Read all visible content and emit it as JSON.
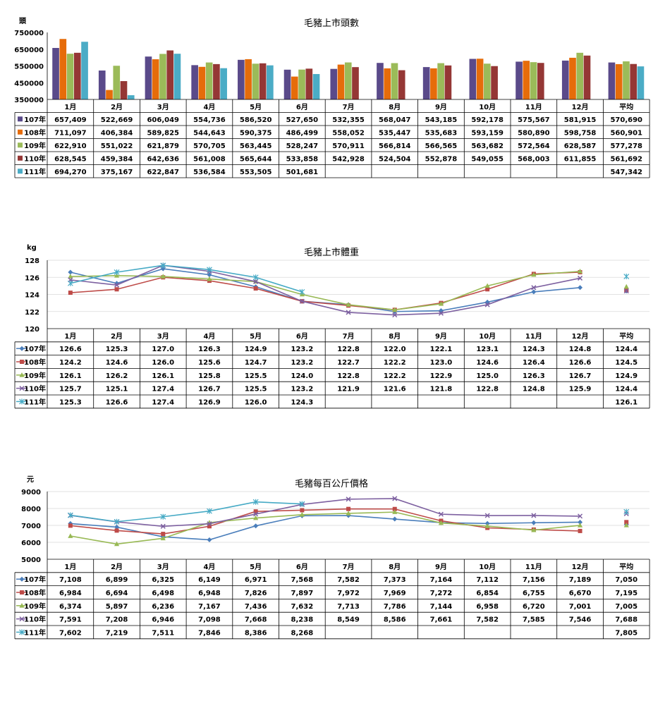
{
  "colors": {
    "107": "#5a4a8a",
    "108": "#e66c0a",
    "109": "#9bbb59",
    "110": "#953735",
    "111": "#4bacc6",
    "line107": "#4a7ebb",
    "line108": "#be4b48",
    "line109": "#98b954",
    "line110": "#7d60a0",
    "line111": "#46aac5"
  },
  "chart_data": [
    {
      "type": "bar",
      "title": "毛豬上市頭數",
      "ylabel": "頭",
      "ylim": [
        350000,
        750000
      ],
      "yticks": [
        "750000",
        "650000",
        "550000",
        "450000",
        "350000"
      ],
      "categories": [
        "1月",
        "2月",
        "3月",
        "4月",
        "5月",
        "6月",
        "7月",
        "8月",
        "9月",
        "10月",
        "11月",
        "12月",
        "平均"
      ],
      "series": [
        {
          "name": "107年",
          "values": [
            657409,
            522669,
            606049,
            554736,
            586520,
            527650,
            532355,
            568047,
            543185,
            592178,
            575567,
            581915,
            570690
          ],
          "labels": [
            "657,409",
            "522,669",
            "606,049",
            "554,736",
            "586,520",
            "527,650",
            "532,355",
            "568,047",
            "543,185",
            "592,178",
            "575,567",
            "581,915",
            "570,690"
          ]
        },
        {
          "name": "108年",
          "values": [
            711097,
            406384,
            589825,
            544643,
            590375,
            486499,
            558052,
            535447,
            535683,
            593159,
            580890,
            598758,
            560901
          ],
          "labels": [
            "711,097",
            "406,384",
            "589,825",
            "544,643",
            "590,375",
            "486,499",
            "558,052",
            "535,447",
            "535,683",
            "593,159",
            "580,890",
            "598,758",
            "560,901"
          ]
        },
        {
          "name": "109年",
          "values": [
            622910,
            551022,
            621879,
            570705,
            563445,
            528247,
            570911,
            566814,
            566565,
            563682,
            572564,
            628587,
            577278
          ],
          "labels": [
            "622,910",
            "551,022",
            "621,879",
            "570,705",
            "563,445",
            "528,247",
            "570,911",
            "566,814",
            "566,565",
            "563,682",
            "572,564",
            "628,587",
            "577,278"
          ]
        },
        {
          "name": "110年",
          "values": [
            628545,
            459384,
            642636,
            561008,
            565644,
            533858,
            542928,
            524504,
            552878,
            549055,
            568003,
            611855,
            561692
          ],
          "labels": [
            "628,545",
            "459,384",
            "642,636",
            "561,008",
            "565,644",
            "533,858",
            "542,928",
            "524,504",
            "552,878",
            "549,055",
            "568,003",
            "611,855",
            "561,692"
          ]
        },
        {
          "name": "111年",
          "values": [
            694270,
            375167,
            622847,
            536584,
            553505,
            501681,
            null,
            null,
            null,
            null,
            null,
            null,
            547342
          ],
          "labels": [
            "694,270",
            "375,167",
            "622,847",
            "536,584",
            "553,505",
            "501,681",
            "",
            "",
            "",
            "",
            "",
            "",
            "547,342"
          ]
        }
      ]
    },
    {
      "type": "line",
      "title": "毛豬上市體重",
      "ylabel": "kg",
      "ylim": [
        120,
        128
      ],
      "yticks": [
        "128",
        "126",
        "124",
        "122",
        "120"
      ],
      "categories": [
        "1月",
        "2月",
        "3月",
        "4月",
        "5月",
        "6月",
        "7月",
        "8月",
        "9月",
        "10月",
        "11月",
        "12月",
        "平均"
      ],
      "series": [
        {
          "name": "107年",
          "values": [
            126.6,
            125.3,
            127.0,
            126.3,
            124.9,
            123.2,
            122.8,
            122.0,
            122.1,
            123.1,
            124.3,
            124.8,
            124.4
          ],
          "labels": [
            "126.6",
            "125.3",
            "127.0",
            "126.3",
            "124.9",
            "123.2",
            "122.8",
            "122.0",
            "122.1",
            "123.1",
            "124.3",
            "124.8",
            "124.4"
          ]
        },
        {
          "name": "108年",
          "values": [
            124.2,
            124.6,
            126.0,
            125.6,
            124.7,
            123.2,
            122.7,
            122.2,
            123.0,
            124.6,
            126.4,
            126.6,
            124.5
          ],
          "labels": [
            "124.2",
            "124.6",
            "126.0",
            "125.6",
            "124.7",
            "123.2",
            "122.7",
            "122.2",
            "123.0",
            "124.6",
            "126.4",
            "126.6",
            "124.5"
          ]
        },
        {
          "name": "109年",
          "values": [
            126.1,
            126.2,
            126.1,
            125.8,
            125.5,
            124.0,
            122.8,
            122.2,
            122.9,
            125.0,
            126.3,
            126.7,
            124.9
          ],
          "labels": [
            "126.1",
            "126.2",
            "126.1",
            "125.8",
            "125.5",
            "124.0",
            "122.8",
            "122.2",
            "122.9",
            "125.0",
            "126.3",
            "126.7",
            "124.9"
          ]
        },
        {
          "name": "110年",
          "values": [
            125.7,
            125.1,
            127.4,
            126.7,
            125.5,
            123.2,
            121.9,
            121.6,
            121.8,
            122.8,
            124.8,
            125.9,
            124.4
          ],
          "labels": [
            "125.7",
            "125.1",
            "127.4",
            "126.7",
            "125.5",
            "123.2",
            "121.9",
            "121.6",
            "121.8",
            "122.8",
            "124.8",
            "125.9",
            "124.4"
          ]
        },
        {
          "name": "111年",
          "values": [
            125.3,
            126.6,
            127.4,
            126.9,
            126.0,
            124.3,
            null,
            null,
            null,
            null,
            null,
            null,
            126.1
          ],
          "labels": [
            "125.3",
            "126.6",
            "127.4",
            "126.9",
            "126.0",
            "124.3",
            "",
            "",
            "",
            "",
            "",
            "",
            "126.1"
          ]
        }
      ]
    },
    {
      "type": "line",
      "title": "毛豬每百公斤價格",
      "ylabel": "元",
      "ylim": [
        5000,
        9000
      ],
      "yticks": [
        "9000",
        "8000",
        "7000",
        "6000",
        "5000"
      ],
      "categories": [
        "1月",
        "2月",
        "3月",
        "4月",
        "5月",
        "6月",
        "7月",
        "8月",
        "9月",
        "10月",
        "11月",
        "12月",
        "平均"
      ],
      "series": [
        {
          "name": "107年",
          "values": [
            7108,
            6899,
            6325,
            6149,
            6971,
            7568,
            7582,
            7373,
            7164,
            7112,
            7156,
            7189,
            7050
          ],
          "labels": [
            "7,108",
            "6,899",
            "6,325",
            "6,149",
            "6,971",
            "7,568",
            "7,582",
            "7,373",
            "7,164",
            "7,112",
            "7,156",
            "7,189",
            "7,050"
          ]
        },
        {
          "name": "108年",
          "values": [
            6984,
            6694,
            6498,
            6948,
            7826,
            7897,
            7972,
            7969,
            7272,
            6854,
            6755,
            6670,
            7195
          ],
          "labels": [
            "6,984",
            "6,694",
            "6,498",
            "6,948",
            "7,826",
            "7,897",
            "7,972",
            "7,969",
            "7,272",
            "6,854",
            "6,755",
            "6,670",
            "7,195"
          ]
        },
        {
          "name": "109年",
          "values": [
            6374,
            5897,
            6236,
            7167,
            7436,
            7632,
            7713,
            7786,
            7144,
            6958,
            6720,
            7001,
            7005
          ],
          "labels": [
            "6,374",
            "5,897",
            "6,236",
            "7,167",
            "7,436",
            "7,632",
            "7,713",
            "7,786",
            "7,144",
            "6,958",
            "6,720",
            "7,001",
            "7,005"
          ]
        },
        {
          "name": "110年",
          "values": [
            7591,
            7208,
            6946,
            7098,
            7668,
            8238,
            8549,
            8586,
            7661,
            7582,
            7585,
            7546,
            7688
          ],
          "labels": [
            "7,591",
            "7,208",
            "6,946",
            "7,098",
            "7,668",
            "8,238",
            "8,549",
            "8,586",
            "7,661",
            "7,582",
            "7,585",
            "7,546",
            "7,688"
          ]
        },
        {
          "name": "111年",
          "values": [
            7602,
            7219,
            7511,
            7846,
            8386,
            8268,
            null,
            null,
            null,
            null,
            null,
            null,
            7805
          ],
          "labels": [
            "7,602",
            "7,219",
            "7,511",
            "7,846",
            "8,386",
            "8,268",
            "",
            "",
            "",
            "",
            "",
            "",
            "7,805"
          ]
        }
      ]
    }
  ]
}
